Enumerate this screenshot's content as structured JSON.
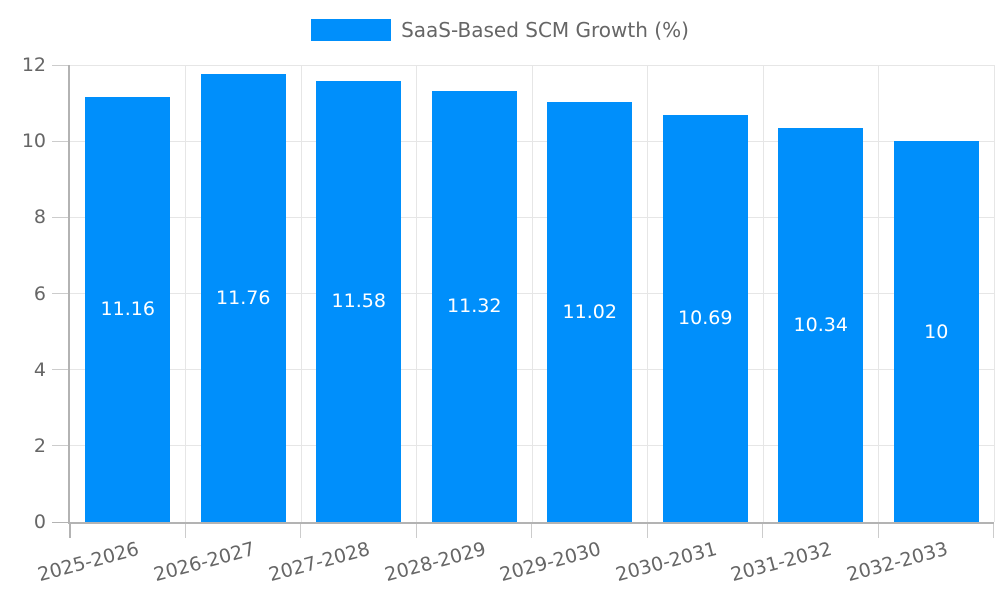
{
  "chart_data": {
    "type": "bar",
    "legend": "SaaS-Based SCM Growth (%)",
    "legend_position": "top",
    "categories": [
      "2025-2026",
      "2026-2027",
      "2027-2028",
      "2028-2029",
      "2029-2030",
      "2030-2031",
      "2031-2032",
      "2032-2033"
    ],
    "values": [
      11.16,
      11.76,
      11.58,
      11.32,
      11.02,
      10.69,
      10.34,
      10
    ],
    "value_labels": [
      "11.16",
      "11.76",
      "11.58",
      "11.32",
      "11.02",
      "10.69",
      "10.34",
      "10"
    ],
    "title": "",
    "xlabel": "",
    "ylabel": "",
    "ylim": [
      0,
      12
    ],
    "y_ticks": [
      0,
      2,
      4,
      6,
      8,
      10,
      12
    ],
    "grid": true,
    "x_label_rotation_deg": 15,
    "colors": {
      "bar": "#008FFB",
      "value_label": "#ffffff",
      "grid": "#e6e6e6",
      "axis": "#b3b3b3",
      "tick": "#cccccc",
      "tick_label": "#666666"
    }
  }
}
